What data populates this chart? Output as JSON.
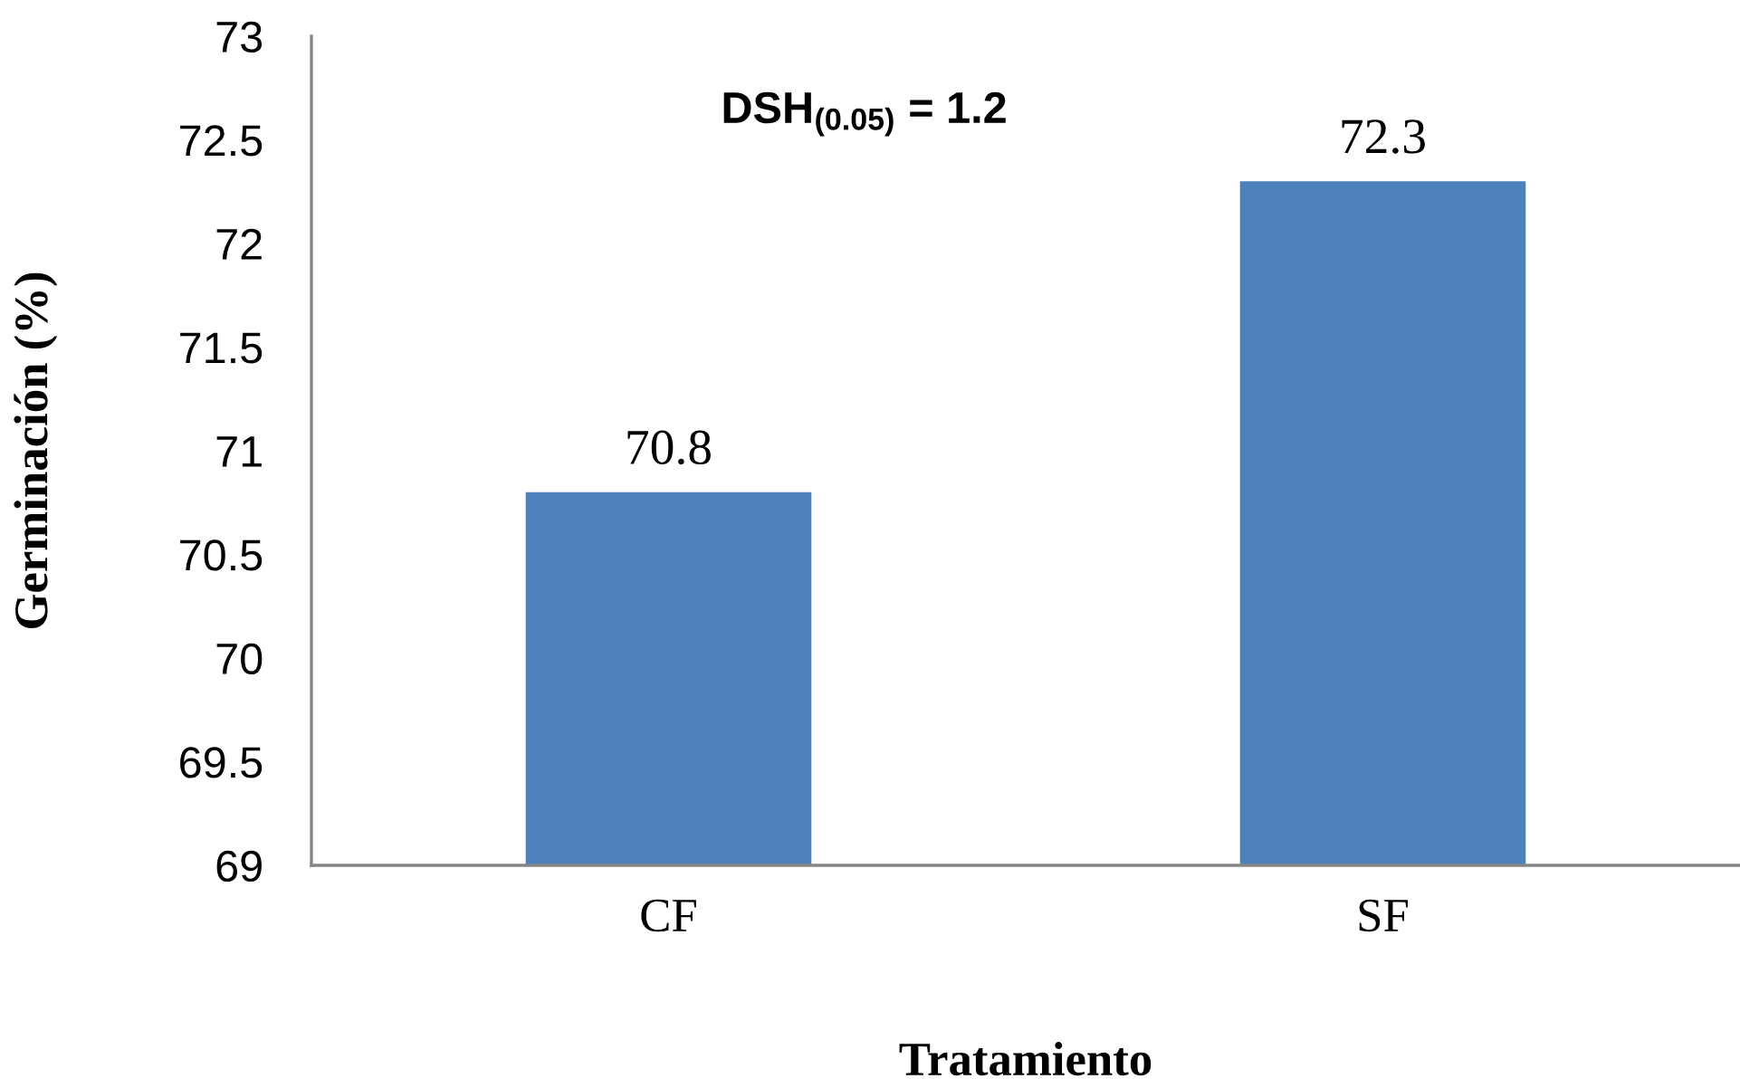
{
  "chart_data": {
    "type": "bar",
    "xlabel": "Tratamiento",
    "ylabel": "Germinación (%)",
    "categories": [
      "CF",
      "SF"
    ],
    "values": [
      70.8,
      72.3
    ],
    "color": "#4f81bd",
    "ylim": [
      69,
      73
    ],
    "yticks": [
      69,
      69.5,
      70,
      70.5,
      71,
      71.5,
      72,
      72.5,
      73
    ],
    "grid": false,
    "data_labels": true,
    "annotations": [
      "DSH$_{(0.05)}$ = 1.2"
    ]
  }
}
